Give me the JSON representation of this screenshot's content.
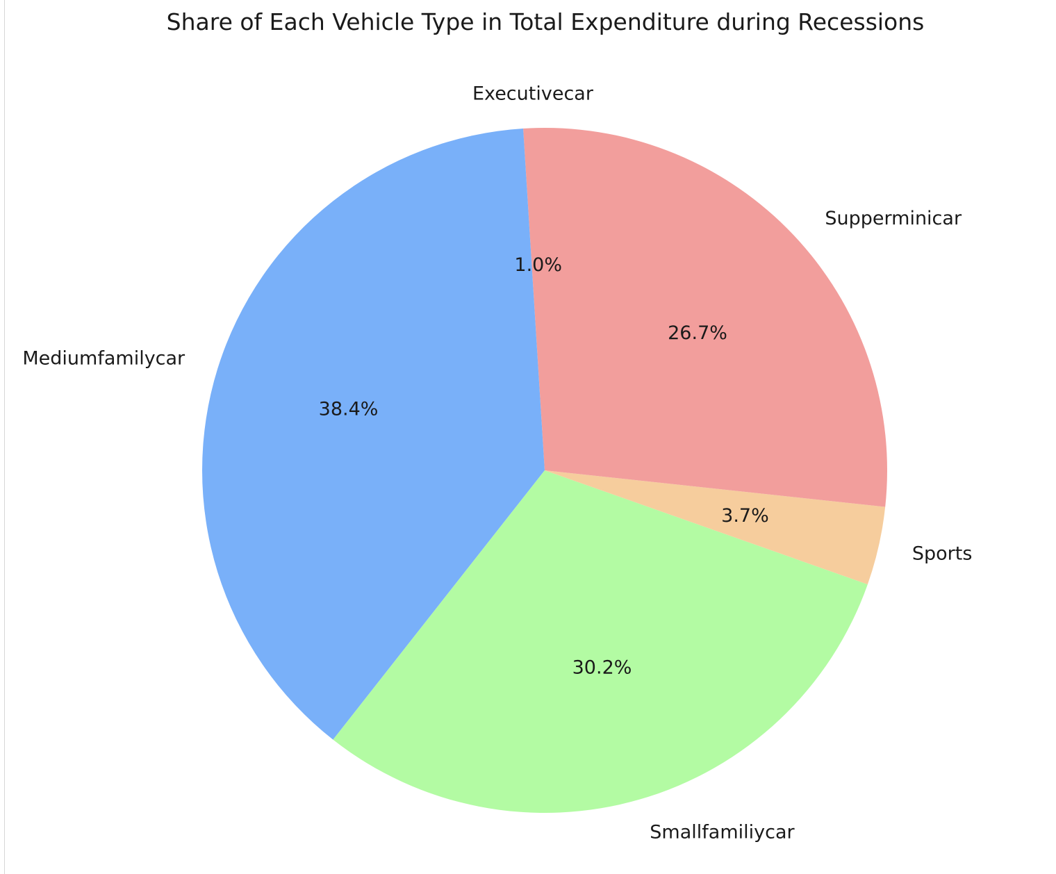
{
  "chart_data": {
    "type": "pie",
    "title": "Share of Each Vehicle Type in Total Expenditure during Recessions",
    "categories": [
      "Executivecar",
      "Mediumfamilycar",
      "Smallfamiliycar",
      "Sports",
      "Supperminicar"
    ],
    "values": [
      1.0,
      38.4,
      30.2,
      3.7,
      26.7
    ],
    "value_labels": [
      "1.0%",
      "38.4%",
      "30.2%",
      "3.7%",
      "26.7%"
    ],
    "colors": [
      "#f29e9c",
      "#79b0f9",
      "#b3fba3",
      "#f6cd9d",
      "#f29e9c"
    ],
    "start_angle_deg": 90,
    "direction": "counterclockwise",
    "legend": "none"
  }
}
